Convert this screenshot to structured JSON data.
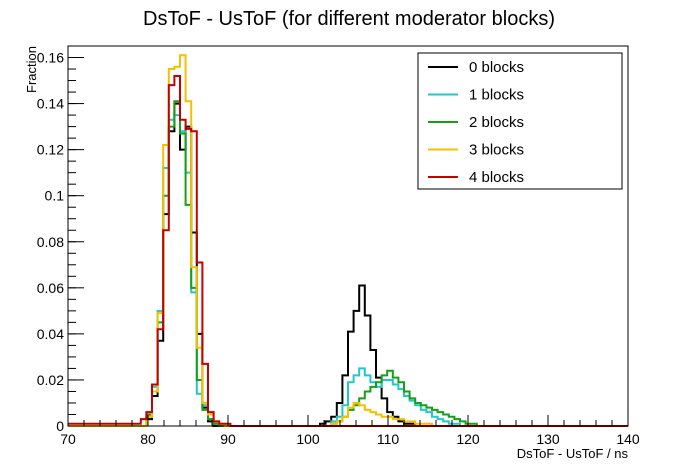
{
  "chart_data": {
    "type": "line",
    "title": "DsToF - UsToF (for different moderator blocks)",
    "xlabel": "DsToF - UsToF / ns",
    "ylabel": "Fraction",
    "xlim": [
      70,
      140
    ],
    "ylim": [
      0,
      0.165
    ],
    "x_ticks": [
      70,
      80,
      90,
      100,
      110,
      120,
      130,
      140
    ],
    "y_ticks": [
      0,
      0.02,
      0.04,
      0.06,
      0.08,
      0.1,
      0.12,
      0.14,
      0.16
    ],
    "y_tick_labels": [
      "0",
      "0.02",
      "0.04",
      "0.06",
      "0.08",
      "0.1",
      "0.12",
      "0.14",
      "0.16"
    ],
    "grid": false,
    "legend_position": "top-right",
    "bin_width": 0.7,
    "x_start": 70,
    "series": [
      {
        "name": "0 blocks",
        "color": "#000000",
        "values": [
          0,
          0,
          0,
          0,
          0,
          0,
          0,
          0,
          0,
          0,
          0,
          0,
          0,
          0,
          0.003,
          0.013,
          0.037,
          0.092,
          0.128,
          0.14,
          0.12,
          0.13,
          0.084,
          0.04,
          0.008,
          0.002,
          0,
          0,
          0,
          0,
          0,
          0,
          0,
          0,
          0,
          0,
          0,
          0,
          0,
          0,
          0,
          0,
          0,
          0,
          0,
          0.001,
          0.002,
          0.004,
          0.01,
          0.022,
          0.041,
          0.05,
          0.061,
          0.048,
          0.033,
          0.021,
          0.012,
          0.006,
          0.004,
          0.002,
          0.001,
          0.001,
          0,
          0,
          0,
          0,
          0,
          0,
          0,
          0,
          0,
          0,
          0,
          0,
          0,
          0,
          0,
          0,
          0,
          0,
          0,
          0,
          0,
          0,
          0,
          0,
          0,
          0,
          0,
          0,
          0,
          0,
          0,
          0,
          0,
          0,
          0,
          0,
          0,
          0
        ]
      },
      {
        "name": "1 blocks",
        "color": "#22c8c8",
        "values": [
          0,
          0,
          0,
          0,
          0,
          0,
          0,
          0,
          0,
          0,
          0,
          0,
          0,
          0,
          0.004,
          0.017,
          0.05,
          0.112,
          0.133,
          0.135,
          0.128,
          0.11,
          0.058,
          0.014,
          0.009,
          0.003,
          0.001,
          0,
          0,
          0,
          0,
          0,
          0,
          0,
          0,
          0,
          0,
          0,
          0,
          0,
          0,
          0,
          0,
          0,
          0,
          0,
          0,
          0.002,
          0.004,
          0.009,
          0.019,
          0.022,
          0.025,
          0.022,
          0.019,
          0.017,
          0.02,
          0.02,
          0.018,
          0.016,
          0.013,
          0.011,
          0.009,
          0.007,
          0.006,
          0.004,
          0.003,
          0.002,
          0.001,
          0.001,
          0,
          0,
          0,
          0,
          0,
          0,
          0,
          0,
          0,
          0,
          0,
          0,
          0,
          0,
          0,
          0,
          0,
          0,
          0,
          0,
          0,
          0,
          0,
          0,
          0,
          0,
          0,
          0,
          0,
          0
        ]
      },
      {
        "name": "2 blocks",
        "color": "#16a016",
        "values": [
          0,
          0,
          0,
          0,
          0,
          0,
          0,
          0,
          0,
          0,
          0,
          0,
          0,
          0,
          0.005,
          0.018,
          0.045,
          0.1,
          0.13,
          0.141,
          0.127,
          0.096,
          0.06,
          0.02,
          0.007,
          0.003,
          0.001,
          0,
          0,
          0,
          0,
          0,
          0,
          0,
          0,
          0,
          0,
          0,
          0,
          0,
          0,
          0,
          0,
          0,
          0,
          0,
          0,
          0.001,
          0.002,
          0.004,
          0.007,
          0.009,
          0.012,
          0.015,
          0.017,
          0.019,
          0.022,
          0.024,
          0.021,
          0.019,
          0.015,
          0.012,
          0.01,
          0.009,
          0.008,
          0.007,
          0.006,
          0.005,
          0.004,
          0.003,
          0.002,
          0.001,
          0.001,
          0,
          0,
          0,
          0,
          0,
          0,
          0,
          0,
          0,
          0,
          0,
          0,
          0,
          0,
          0,
          0,
          0,
          0,
          0,
          0,
          0,
          0,
          0,
          0,
          0,
          0,
          0
        ]
      },
      {
        "name": "3 blocks",
        "color": "#f5c000",
        "values": [
          0,
          0,
          0,
          0,
          0,
          0,
          0,
          0,
          0,
          0,
          0,
          0,
          0,
          0,
          0.004,
          0.015,
          0.049,
          0.122,
          0.155,
          0.156,
          0.161,
          0.141,
          0.069,
          0.034,
          0.01,
          0.005,
          0.002,
          0.001,
          0,
          0,
          0,
          0,
          0,
          0,
          0,
          0,
          0,
          0,
          0,
          0,
          0,
          0,
          0,
          0,
          0,
          0,
          0,
          0.001,
          0.002,
          0.004,
          0.008,
          0.01,
          0.009,
          0.007,
          0.006,
          0.005,
          0.004,
          0.004,
          0.003,
          0.003,
          0.002,
          0.002,
          0.001,
          0.001,
          0.001,
          0,
          0,
          0,
          0,
          0,
          0,
          0,
          0,
          0,
          0,
          0,
          0,
          0,
          0,
          0,
          0,
          0,
          0,
          0,
          0,
          0,
          0,
          0,
          0,
          0,
          0,
          0,
          0,
          0,
          0,
          0,
          0,
          0,
          0,
          0
        ]
      },
      {
        "name": "4 blocks",
        "color": "#c40000",
        "values": [
          0.001,
          0.001,
          0.001,
          0.001,
          0.001,
          0.001,
          0.001,
          0.001,
          0.001,
          0.001,
          0.001,
          0.001,
          0.001,
          0.003,
          0.006,
          0.018,
          0.042,
          0.085,
          0.148,
          0.152,
          0.133,
          0.129,
          0.128,
          0.071,
          0.027,
          0.006,
          0.002,
          0.001,
          0.001,
          0,
          0,
          0,
          0,
          0,
          0,
          0,
          0,
          0,
          0,
          0,
          0,
          0,
          0,
          0,
          0,
          0,
          0,
          0,
          0,
          0,
          0,
          0,
          0,
          0,
          0,
          0,
          0,
          0,
          0,
          0,
          0,
          0,
          0,
          0,
          0,
          0,
          0,
          0,
          0,
          0,
          0,
          0,
          0,
          0,
          0,
          0,
          0,
          0,
          0,
          0,
          0,
          0,
          0,
          0,
          0,
          0,
          0,
          0,
          0,
          0,
          0,
          0,
          0,
          0,
          0,
          0,
          0,
          0,
          0,
          0
        ]
      }
    ]
  }
}
